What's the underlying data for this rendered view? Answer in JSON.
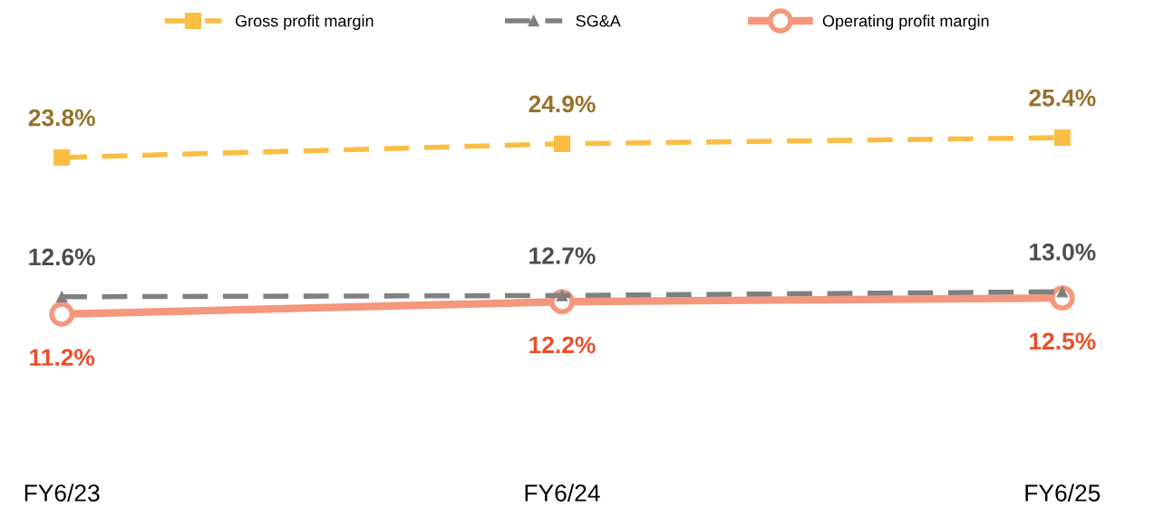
{
  "chart_data": {
    "type": "line",
    "categories": [
      "FY6/23",
      "FY6/24",
      "FY6/25"
    ],
    "legend": "top",
    "tick_labels": "x",
    "series": [
      {
        "name": "Gross profit margin",
        "color": "#fbbd44",
        "marker": "square",
        "line_style": "dashed",
        "values": [
          23.8,
          24.9,
          25.4
        ],
        "value_labels": [
          "23.8%",
          "24.9%",
          "25.4%"
        ]
      },
      {
        "name": "SG&A",
        "color": "#808080",
        "marker": "triangle",
        "line_style": "dashed",
        "values": [
          12.6,
          12.7,
          13.0
        ],
        "value_labels": [
          "12.6%",
          "12.7%",
          "13.0%"
        ]
      },
      {
        "name": "Operating profit margin",
        "color": "#f4977c",
        "marker": "circle",
        "line_style": "solid",
        "values": [
          11.2,
          12.2,
          12.5
        ],
        "value_labels": [
          "11.2%",
          "12.2%",
          "12.5%"
        ]
      }
    ]
  }
}
